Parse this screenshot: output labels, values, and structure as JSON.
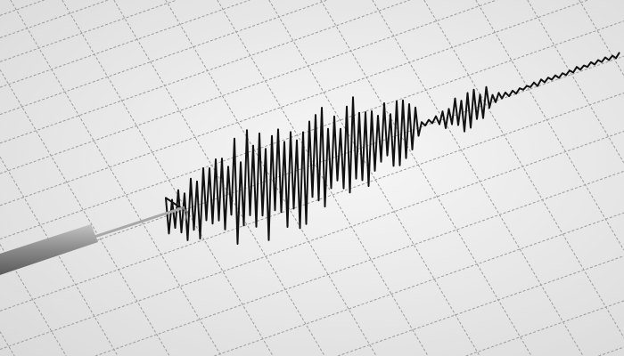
{
  "colors": {
    "paper": "#f3f3f3",
    "paper_shade": "#dcdcdc",
    "grid": "#9c9c9c",
    "trace": "#111111",
    "stylus_body": "#8c8c8c",
    "stylus_rod": "#a8a8a8"
  }
}
